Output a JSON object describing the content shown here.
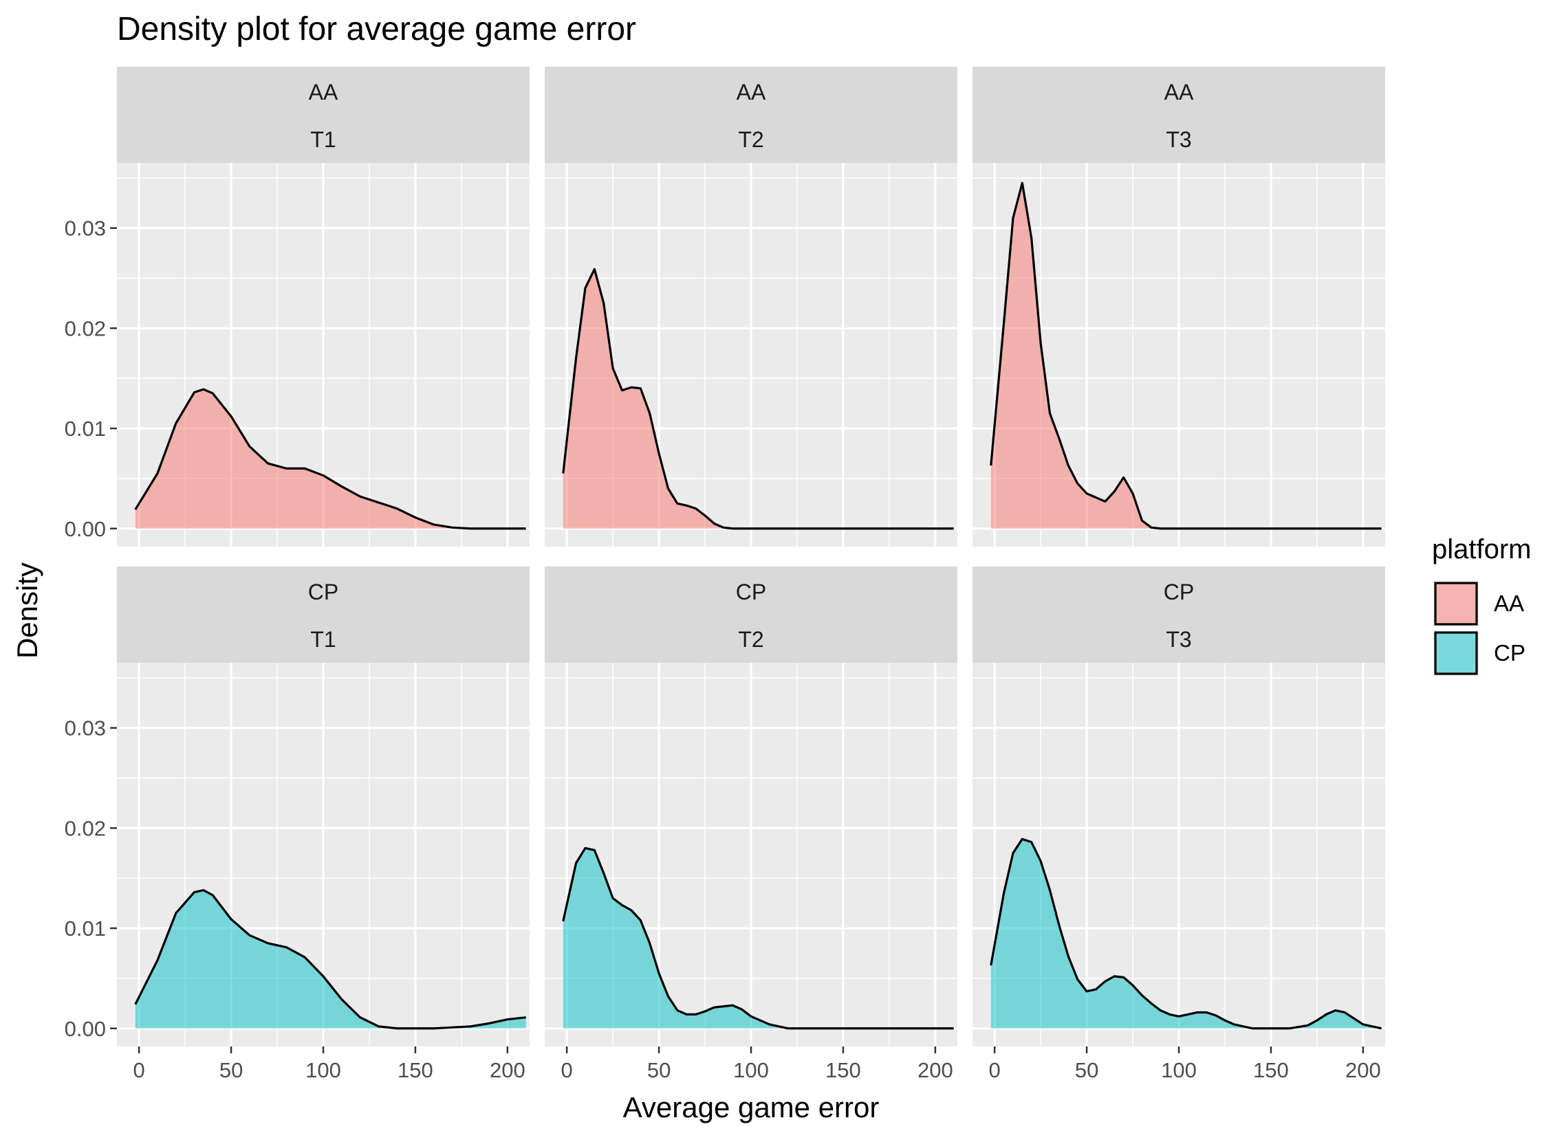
{
  "chart_data": {
    "type": "area",
    "title": "Density plot for average game error",
    "xlabel": "Average game error",
    "ylabel": "Density",
    "xlim": [
      -12,
      212
    ],
    "ylim": [
      -0.0018,
      0.0365
    ],
    "x_ticks": [
      0,
      50,
      100,
      150,
      200
    ],
    "x_tick_labels": [
      "0",
      "50",
      "100",
      "150",
      "200"
    ],
    "y_ticks": [
      0,
      0.01,
      0.02,
      0.03
    ],
    "y_tick_labels": [
      "0.00",
      "0.01",
      "0.02",
      "0.03"
    ],
    "grid": true,
    "facet_rows": [
      "AA",
      "CP"
    ],
    "facet_cols": [
      "T1",
      "T2",
      "T3"
    ],
    "legend": {
      "title": "platform",
      "position": "right",
      "entries": [
        {
          "label": "AA",
          "color": "#F8766D"
        },
        {
          "label": "CP",
          "color": "#00BFC4"
        }
      ]
    },
    "panels": [
      {
        "platform": "AA",
        "task": "T1",
        "x": [
          -2,
          10,
          20,
          30,
          35,
          40,
          50,
          60,
          70,
          80,
          90,
          100,
          110,
          120,
          130,
          140,
          150,
          160,
          170,
          180,
          190,
          200,
          210
        ],
        "y": [
          0.0019,
          0.0055,
          0.0105,
          0.0136,
          0.0139,
          0.0135,
          0.0112,
          0.0082,
          0.0065,
          0.006,
          0.006,
          0.0053,
          0.0042,
          0.0032,
          0.0026,
          0.002,
          0.0011,
          0.0004,
          0.0001,
          0,
          0,
          0,
          0
        ]
      },
      {
        "platform": "AA",
        "task": "T2",
        "x": [
          -2,
          5,
          10,
          15,
          20,
          25,
          30,
          35,
          40,
          45,
          50,
          55,
          60,
          65,
          70,
          75,
          80,
          85,
          90,
          100,
          150,
          210
        ],
        "y": [
          0.0055,
          0.017,
          0.024,
          0.0259,
          0.0225,
          0.016,
          0.0138,
          0.0141,
          0.014,
          0.0115,
          0.0075,
          0.004,
          0.0025,
          0.0023,
          0.002,
          0.0013,
          0.0005,
          0.0001,
          0,
          0,
          0,
          0
        ]
      },
      {
        "platform": "AA",
        "task": "T3",
        "x": [
          -2,
          5,
          10,
          15,
          20,
          25,
          30,
          35,
          40,
          45,
          50,
          55,
          60,
          65,
          70,
          75,
          80,
          85,
          90,
          100,
          150,
          210
        ],
        "y": [
          0.0063,
          0.0205,
          0.031,
          0.0345,
          0.029,
          0.0185,
          0.0115,
          0.009,
          0.0063,
          0.0045,
          0.0035,
          0.0031,
          0.0027,
          0.0037,
          0.0051,
          0.0035,
          0.0008,
          0.0001,
          0,
          0,
          0,
          0
        ]
      },
      {
        "platform": "CP",
        "task": "T1",
        "x": [
          -2,
          10,
          20,
          30,
          35,
          40,
          50,
          60,
          70,
          80,
          90,
          100,
          110,
          120,
          130,
          140,
          150,
          160,
          170,
          180,
          190,
          200,
          210
        ],
        "y": [
          0.0024,
          0.0068,
          0.0115,
          0.0136,
          0.0138,
          0.0133,
          0.0109,
          0.0093,
          0.0085,
          0.0081,
          0.0071,
          0.0052,
          0.0029,
          0.0011,
          0.0002,
          0,
          0,
          0,
          0.0001,
          0.0002,
          0.0005,
          0.0009,
          0.0011
        ]
      },
      {
        "platform": "CP",
        "task": "T2",
        "x": [
          -2,
          5,
          10,
          15,
          20,
          25,
          30,
          35,
          40,
          45,
          50,
          55,
          60,
          65,
          70,
          75,
          80,
          90,
          95,
          100,
          110,
          120,
          150,
          210
        ],
        "y": [
          0.0107,
          0.0165,
          0.018,
          0.0178,
          0.0155,
          0.013,
          0.0123,
          0.0118,
          0.0108,
          0.0085,
          0.0055,
          0.0032,
          0.0018,
          0.0014,
          0.0014,
          0.0017,
          0.0021,
          0.0023,
          0.0019,
          0.0012,
          0.0004,
          0,
          0,
          0
        ]
      },
      {
        "platform": "CP",
        "task": "T3",
        "x": [
          -2,
          5,
          10,
          15,
          20,
          25,
          30,
          35,
          40,
          45,
          50,
          55,
          60,
          65,
          70,
          75,
          80,
          85,
          90,
          95,
          100,
          105,
          110,
          115,
          120,
          125,
          130,
          140,
          150,
          160,
          170,
          175,
          180,
          185,
          190,
          195,
          200,
          210
        ],
        "y": [
          0.0063,
          0.0135,
          0.0175,
          0.0189,
          0.0186,
          0.0167,
          0.0138,
          0.0103,
          0.0072,
          0.0049,
          0.0037,
          0.0039,
          0.0047,
          0.0052,
          0.0051,
          0.0043,
          0.0033,
          0.0025,
          0.0018,
          0.0014,
          0.0012,
          0.0014,
          0.0016,
          0.0016,
          0.0013,
          0.0008,
          0.0004,
          0,
          0,
          0,
          0.0003,
          0.0008,
          0.0014,
          0.0018,
          0.0016,
          0.001,
          0.0004,
          0
        ]
      }
    ]
  }
}
